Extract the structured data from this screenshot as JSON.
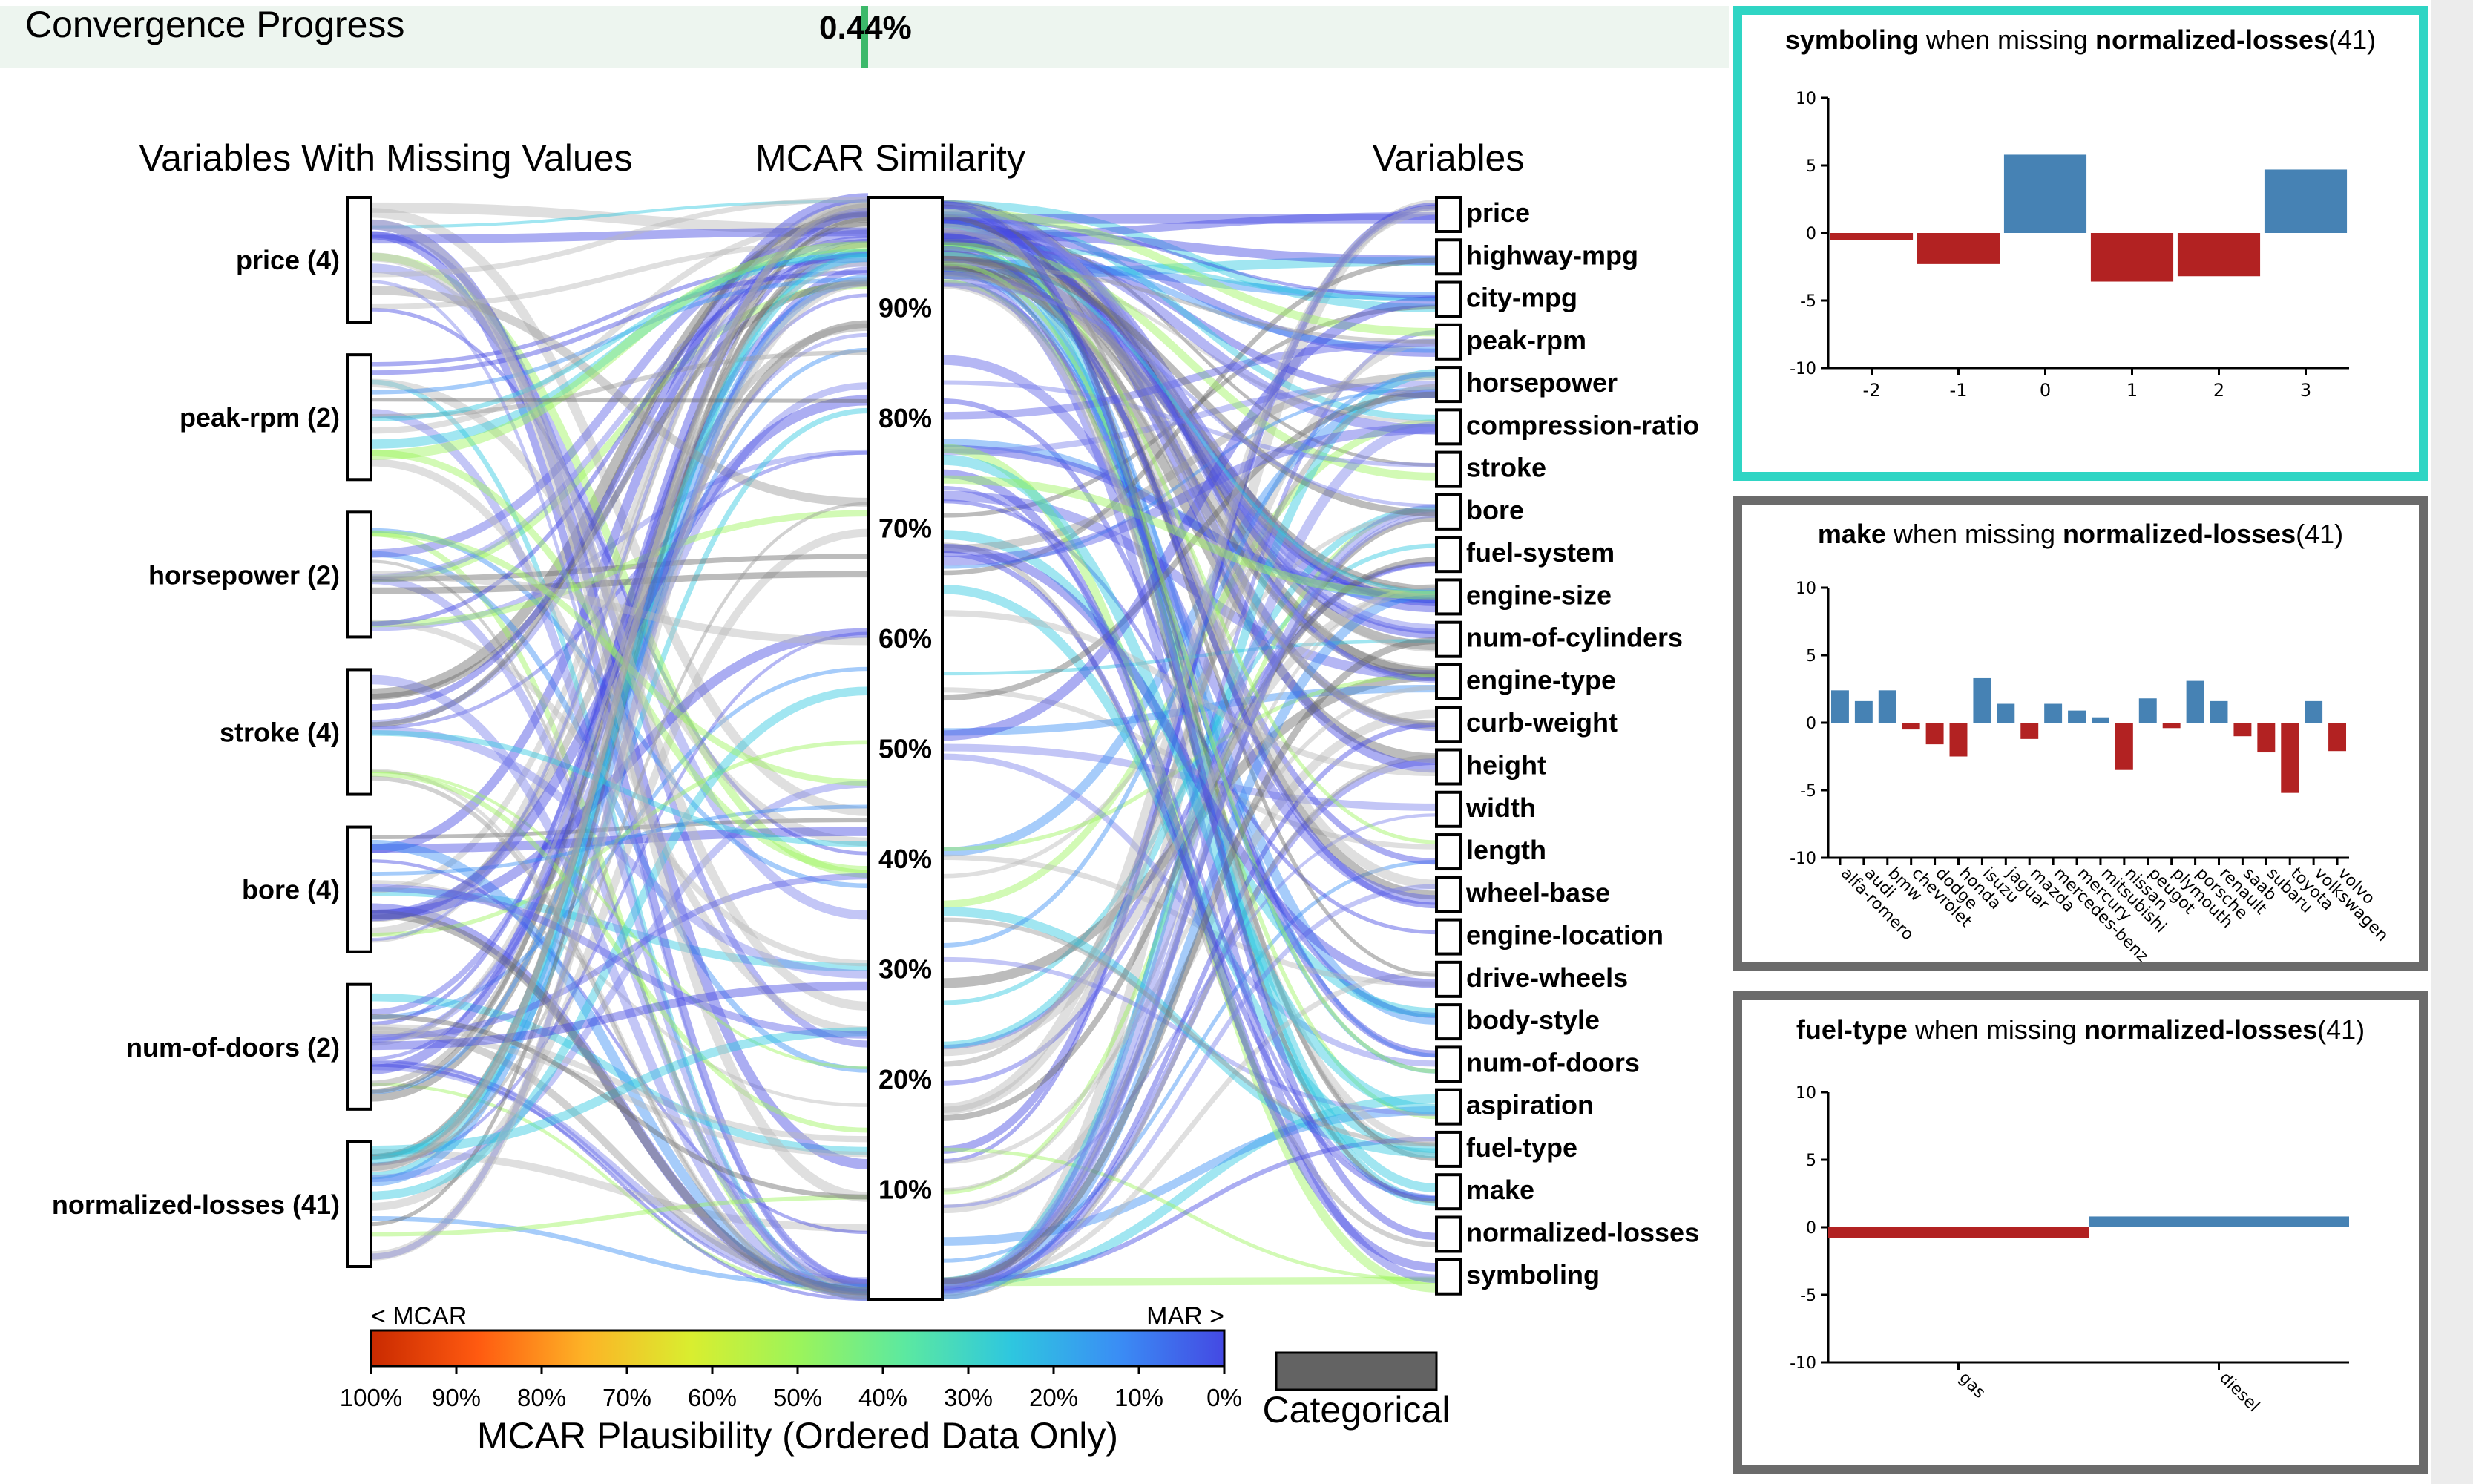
{
  "progress": {
    "label": "Convergence Progress",
    "value": "0.44%",
    "fraction": 0.0044
  },
  "headers": {
    "left": "Variables With Missing Values",
    "middle": "MCAR Similarity",
    "right": "Variables"
  },
  "legend": {
    "mcar_end": "< MCAR",
    "mar_end": "MAR >",
    "ticks": [
      "100%",
      "90%",
      "80%",
      "70%",
      "60%",
      "50%",
      "40%",
      "30%",
      "20%",
      "10%",
      "0%"
    ],
    "title": "MCAR Plausibility (Ordered Data Only)",
    "categorical_label": "Categorical",
    "gradient_colors": [
      "#c92a00",
      "#ff5a10",
      "#fdb326",
      "#d9ee2f",
      "#9cf45a",
      "#5ce9a0",
      "#2ec7df",
      "#3a8ef5",
      "#4449e3"
    ],
    "categorical_color": "#636363"
  },
  "chart_data": [
    {
      "type": "parallel-sets",
      "missing_variables": [
        {
          "name": "price",
          "count": 4,
          "label": "price (4)"
        },
        {
          "name": "peak-rpm",
          "count": 2,
          "label": "peak-rpm (2)"
        },
        {
          "name": "horsepower",
          "count": 2,
          "label": "horsepower (2)"
        },
        {
          "name": "stroke",
          "count": 4,
          "label": "stroke (4)"
        },
        {
          "name": "bore",
          "count": 4,
          "label": "bore (4)"
        },
        {
          "name": "num-of-doors",
          "count": 2,
          "label": "num-of-doors (2)"
        },
        {
          "name": "normalized-losses",
          "count": 41,
          "label": "normalized-losses (41)"
        }
      ],
      "similarity_axis": {
        "ticks": [
          "90%",
          "80%",
          "70%",
          "60%",
          "50%",
          "40%",
          "30%",
          "20%",
          "10%"
        ],
        "range": [
          0,
          100
        ]
      },
      "variables": [
        "price",
        "highway-mpg",
        "city-mpg",
        "peak-rpm",
        "horsepower",
        "compression-ratio",
        "stroke",
        "bore",
        "fuel-system",
        "engine-size",
        "num-of-cylinders",
        "engine-type",
        "curb-weight",
        "height",
        "width",
        "length",
        "wheel-base",
        "engine-location",
        "drive-wheels",
        "body-style",
        "num-of-doors",
        "aspiration",
        "fuel-type",
        "make",
        "normalized-losses",
        "symboling"
      ]
    },
    {
      "type": "bar",
      "title_var": "symboling",
      "title_mid": " when missing ",
      "title_cond": "normalized-losses",
      "title_count": "(41)",
      "categories": [
        "-2",
        "-1",
        "0",
        "1",
        "2",
        "3"
      ],
      "values": [
        -0.5,
        -2.3,
        5.8,
        -3.6,
        -3.2,
        4.7
      ],
      "ylim": [
        -10,
        10
      ],
      "yticks": [
        "10",
        "5",
        "0",
        "-5",
        "-10"
      ],
      "pos_color": "#4682b4",
      "neg_color": "#b22222",
      "border_color": "#2fd5c4"
    },
    {
      "type": "bar",
      "title_var": "make",
      "title_mid": " when missing ",
      "title_cond": "normalized-losses",
      "title_count": "(41)",
      "categories": [
        "alfa-romero",
        "audi",
        "bmw",
        "chevrolet",
        "dodge",
        "honda",
        "isuzu",
        "jaguar",
        "mazda",
        "mercedes-benz",
        "mercury",
        "mitsubishi",
        "nissan",
        "peugot",
        "plymouth",
        "porsche",
        "renault",
        "saab",
        "subaru",
        "toyota",
        "volkswagen",
        "volvo"
      ],
      "values": [
        2.4,
        1.6,
        2.4,
        -0.5,
        -1.6,
        -2.5,
        3.3,
        1.4,
        -1.2,
        1.4,
        0.9,
        0.4,
        -3.5,
        1.8,
        -0.4,
        3.1,
        1.6,
        -1.0,
        -2.2,
        -5.2,
        1.6,
        -2.1
      ],
      "ylim": [
        -10,
        10
      ],
      "yticks": [
        "10",
        "5",
        "0",
        "-5",
        "-10"
      ],
      "pos_color": "#4682b4",
      "neg_color": "#b22222",
      "border_color": "#6b6b6b"
    },
    {
      "type": "bar",
      "title_var": "fuel-type",
      "title_mid": " when missing ",
      "title_cond": "normalized-losses",
      "title_count": "(41)",
      "categories": [
        "gas",
        "diesel"
      ],
      "values": [
        -0.8,
        0.8
      ],
      "ylim": [
        -10,
        10
      ],
      "yticks": [
        "10",
        "5",
        "0",
        "-5",
        "-10"
      ],
      "pos_color": "#4682b4",
      "neg_color": "#b22222",
      "border_color": "#6b6b6b"
    }
  ]
}
